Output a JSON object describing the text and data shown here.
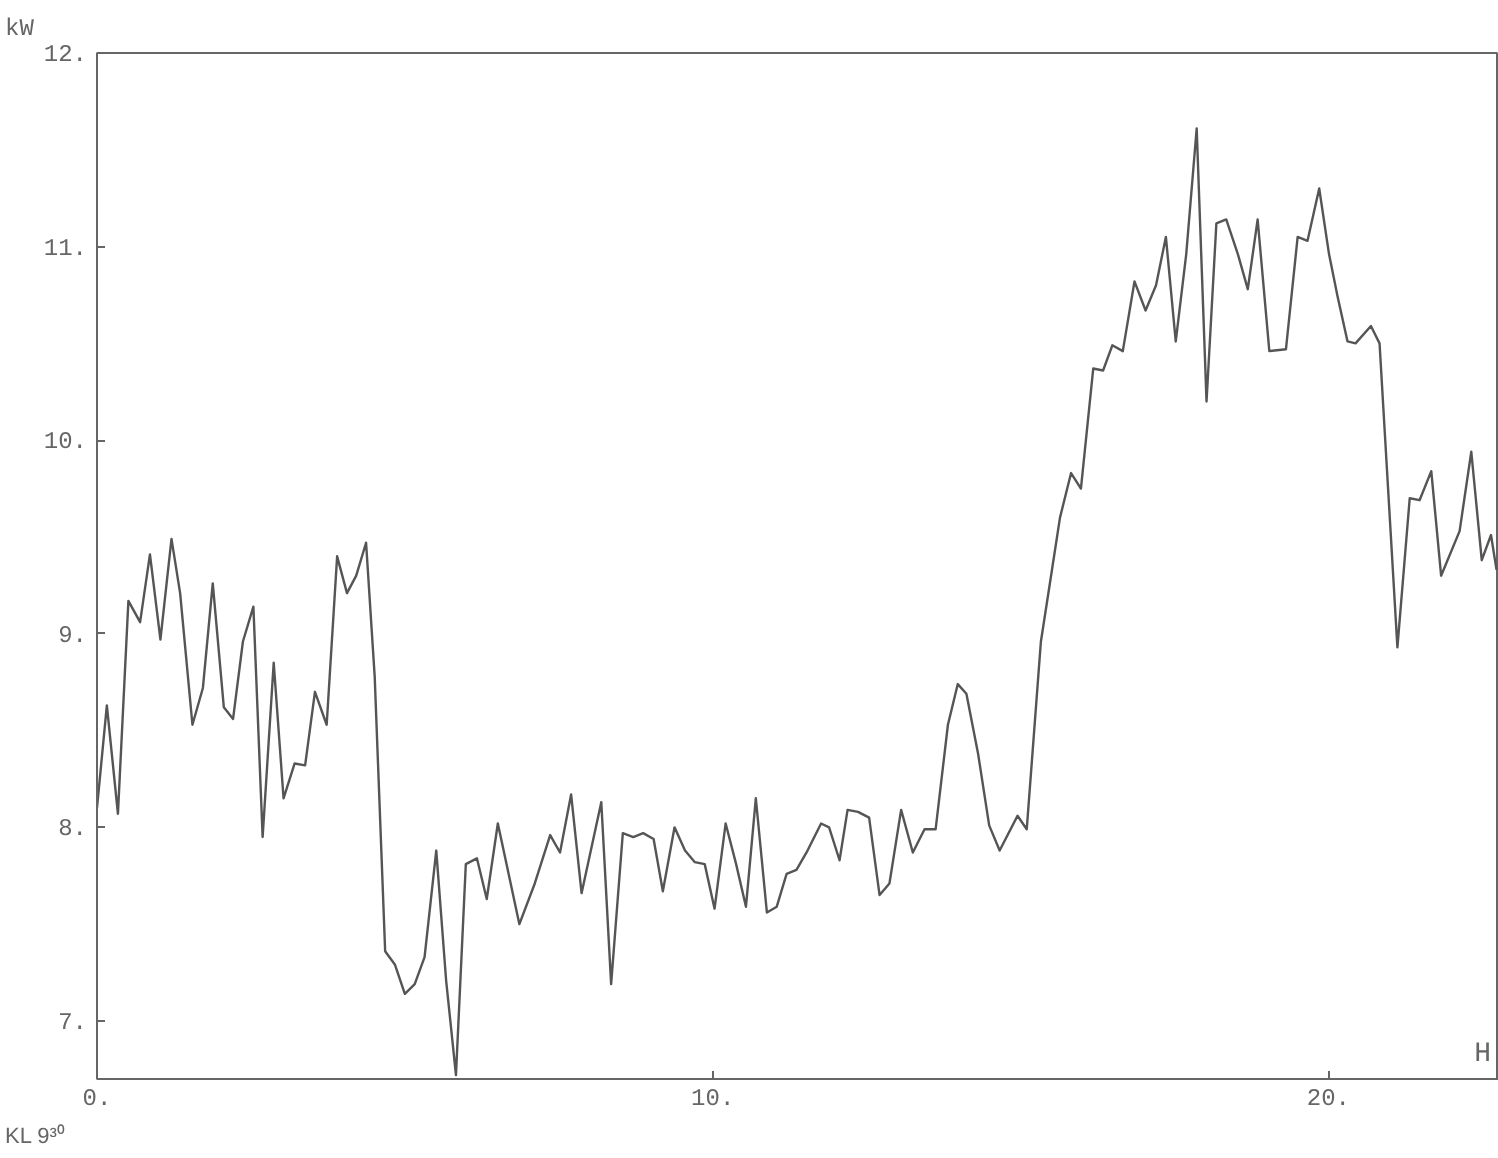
{
  "chart_data": {
    "type": "line",
    "xlabel": "H",
    "ylabel": "kW",
    "color": "#555555",
    "annotations": [
      "KL 9³⁰"
    ],
    "xlim": [
      0,
      22.77
    ],
    "ylim": [
      6.7,
      12
    ],
    "xticks": [
      {
        "value": 0,
        "label": "0."
      },
      {
        "value": 10,
        "label": "10."
      },
      {
        "value": 20,
        "label": "20."
      }
    ],
    "yticks": [
      {
        "value": 7,
        "label": "7."
      },
      {
        "value": 8,
        "label": "8."
      },
      {
        "value": 9,
        "label": "9."
      },
      {
        "value": 10,
        "label": "10."
      },
      {
        "value": 11,
        "label": "11."
      },
      {
        "value": 12,
        "label": "12."
      }
    ],
    "grid": false,
    "marker": "none",
    "line_style": "solid",
    "x": [
      0.0,
      0.16,
      0.34,
      0.51,
      0.7,
      0.86,
      1.03,
      1.21,
      1.35,
      1.55,
      1.72,
      1.88,
      2.06,
      2.21,
      2.37,
      2.54,
      2.69,
      2.87,
      3.03,
      3.21,
      3.38,
      3.54,
      3.73,
      3.9,
      4.06,
      4.21,
      4.37,
      4.51,
      4.68,
      4.84,
      5.0,
      5.16,
      5.32,
      5.51,
      5.67,
      5.83,
      5.99,
      6.17,
      6.33,
      6.51,
      6.86,
      7.11,
      7.36,
      7.52,
      7.7,
      7.87,
      8.19,
      8.35,
      8.54,
      8.71,
      8.87,
      9.04,
      9.19,
      9.38,
      9.55,
      9.71,
      9.87,
      10.03,
      10.21,
      10.38,
      10.54,
      10.7,
      10.88,
      11.04,
      11.2,
      11.36,
      11.54,
      11.76,
      11.89,
      12.06,
      12.19,
      12.36,
      12.54,
      12.71,
      12.87,
      13.06,
      13.25,
      13.44,
      13.62,
      13.82,
      13.98,
      14.12,
      14.31,
      14.49,
      14.66,
      14.95,
      15.1,
      15.33,
      15.5,
      15.64,
      15.82,
      15.98,
      16.18,
      16.34,
      16.49,
      16.66,
      16.85,
      17.03,
      17.2,
      17.36,
      17.52,
      17.69,
      17.86,
      18.02,
      18.18,
      18.34,
      18.53,
      18.69,
      18.85,
      19.04,
      19.31,
      19.5,
      19.66,
      19.85,
      20.01,
      20.15,
      20.31,
      20.44,
      20.69,
      20.83,
      21.12,
      21.32,
      21.48,
      21.67,
      21.83,
      22.13,
      22.32,
      22.49,
      22.64,
      22.73
    ],
    "values": [
      8.1,
      8.63,
      8.07,
      9.17,
      9.06,
      9.41,
      8.97,
      9.49,
      9.21,
      8.53,
      8.72,
      9.26,
      8.62,
      8.56,
      8.96,
      9.14,
      7.95,
      8.85,
      8.15,
      8.33,
      8.32,
      8.7,
      8.53,
      9.4,
      9.21,
      9.3,
      9.47,
      8.78,
      7.36,
      7.29,
      7.14,
      7.19,
      7.33,
      7.88,
      7.21,
      6.72,
      7.81,
      7.84,
      7.63,
      8.02,
      7.5,
      7.71,
      7.96,
      7.87,
      8.17,
      7.66,
      8.13,
      7.19,
      7.97,
      7.95,
      7.97,
      7.94,
      7.67,
      8.0,
      7.88,
      7.82,
      7.81,
      7.58,
      8.02,
      7.81,
      7.59,
      8.15,
      7.56,
      7.59,
      7.76,
      7.78,
      7.88,
      8.02,
      8.0,
      7.83,
      8.09,
      8.08,
      8.05,
      7.65,
      7.71,
      8.09,
      7.87,
      7.99,
      7.99,
      8.53,
      8.74,
      8.69,
      8.38,
      8.01,
      7.88,
      8.06,
      7.99,
      8.96,
      9.31,
      9.6,
      9.83,
      9.75,
      10.37,
      10.36,
      10.49,
      10.46,
      10.82,
      10.67,
      10.8,
      11.05,
      10.51,
      10.96,
      11.61,
      10.2,
      11.12,
      11.14,
      10.96,
      10.78,
      11.14,
      10.46,
      10.47,
      11.05,
      11.03,
      11.3,
      10.96,
      10.74,
      10.51,
      10.5,
      10.59,
      10.5,
      8.93,
      9.7,
      9.69,
      9.84,
      9.3,
      9.53,
      9.94,
      9.38,
      9.51,
      9.33
    ]
  }
}
